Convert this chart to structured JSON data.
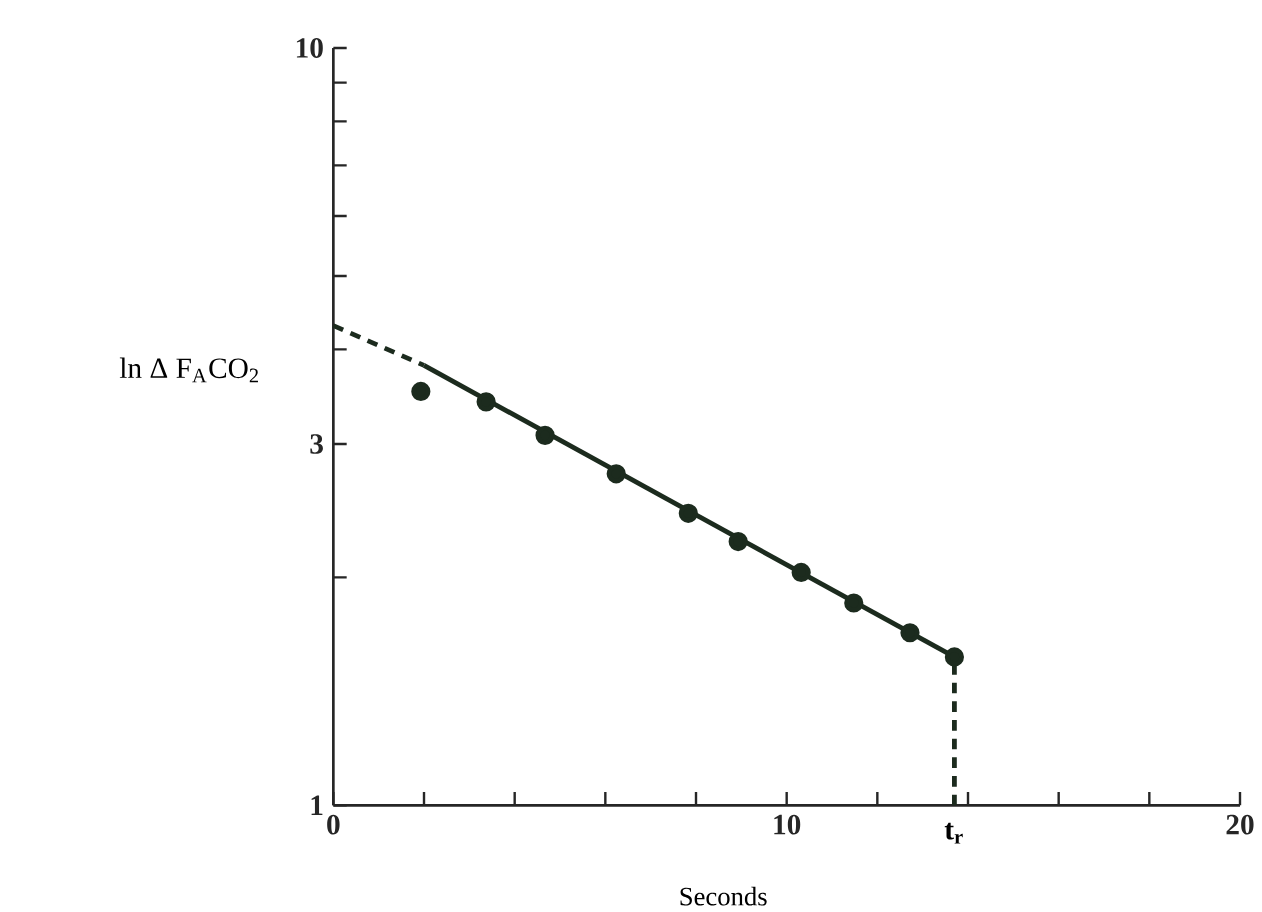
{
  "chart_data": {
    "type": "scatter",
    "xlabel": "Seconds",
    "ylabel": "ln Δ F$_{A}$CO$_{2}$",
    "log": "y",
    "grid": false,
    "xlim": [
      0,
      20
    ],
    "ylim": [
      1,
      10
    ],
    "xticks": [
      0,
      {
        "value": 2,
        "label": null
      },
      {
        "value": 4,
        "label": null
      },
      {
        "value": 6,
        "label": null
      },
      {
        "value": 8,
        "label": null
      },
      10,
      {
        "value": 12,
        "label": null
      },
      {
        "value": 14,
        "label": null
      },
      {
        "value": 16,
        "label": null
      },
      {
        "value": 18,
        "label": null
      },
      20
    ],
    "yticks": [
      1,
      {
        "value": 2,
        "label": null
      },
      3,
      {
        "value": 4,
        "label": null
      },
      {
        "value": 5,
        "label": null
      },
      {
        "value": 6,
        "label": null
      },
      {
        "value": 7,
        "label": null
      },
      {
        "value": 8,
        "label": null
      },
      {
        "value": 9,
        "label": null
      },
      10
    ],
    "series": [
      {
        "type": "line",
        "line_style": "dashed",
        "marker": "none",
        "color": "#1c2b1e",
        "x": [
          0,
          2
        ],
        "values": [
          4.3,
          3.81
        ]
      },
      {
        "type": "line",
        "line_style": "solid",
        "marker": "none",
        "color": "#1c2b1e",
        "x": [
          2,
          13.7
        ],
        "values": [
          3.81,
          1.57
        ]
      },
      {
        "type": "line",
        "line_style": "dashed",
        "marker": "none",
        "color": "#1c2b1e",
        "x": [
          13.7,
          13.7
        ],
        "values": [
          1,
          1.57
        ]
      },
      {
        "marker": "circle",
        "color": "#1c2b1e",
        "x": [
          1.93,
          3.37,
          4.67,
          6.24,
          7.83,
          8.93,
          10.32,
          11.48,
          12.72,
          13.7
        ],
        "values": [
          3.52,
          3.41,
          3.08,
          2.74,
          2.43,
          2.23,
          2.03,
          1.85,
          1.69,
          1.57
        ]
      }
    ],
    "annotations": [
      {
        "text": "t$_{r}$",
        "x": 13.7,
        "y": 1
      }
    ]
  }
}
